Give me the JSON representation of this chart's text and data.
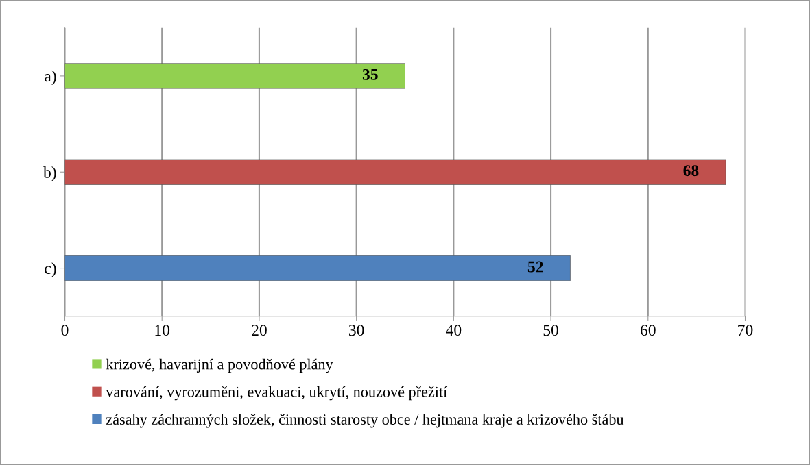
{
  "chart_data": {
    "type": "bar",
    "orientation": "horizontal",
    "categories": [
      "a)",
      "b)",
      "c)"
    ],
    "series": [
      {
        "name": "krizové, havarijní a povodňové plány",
        "color": "#92d050",
        "values": [
          35,
          null,
          null
        ]
      },
      {
        "name": "varování, vyrozuměni, evakuaci, ukrytí, nouzové přežití",
        "color": "#c0504d",
        "values": [
          null,
          68,
          null
        ]
      },
      {
        "name": "zásahy záchranných složek, činnosti starosty obce / hejtmana kraje a krizového štábu",
        "color": "#4f81bd",
        "values": [
          null,
          null,
          52
        ]
      }
    ],
    "xlim": [
      0,
      70
    ],
    "xticks": [
      0,
      10,
      20,
      30,
      40,
      50,
      60,
      70
    ],
    "grid": "x",
    "legend": "bottom",
    "data_labels": true
  }
}
